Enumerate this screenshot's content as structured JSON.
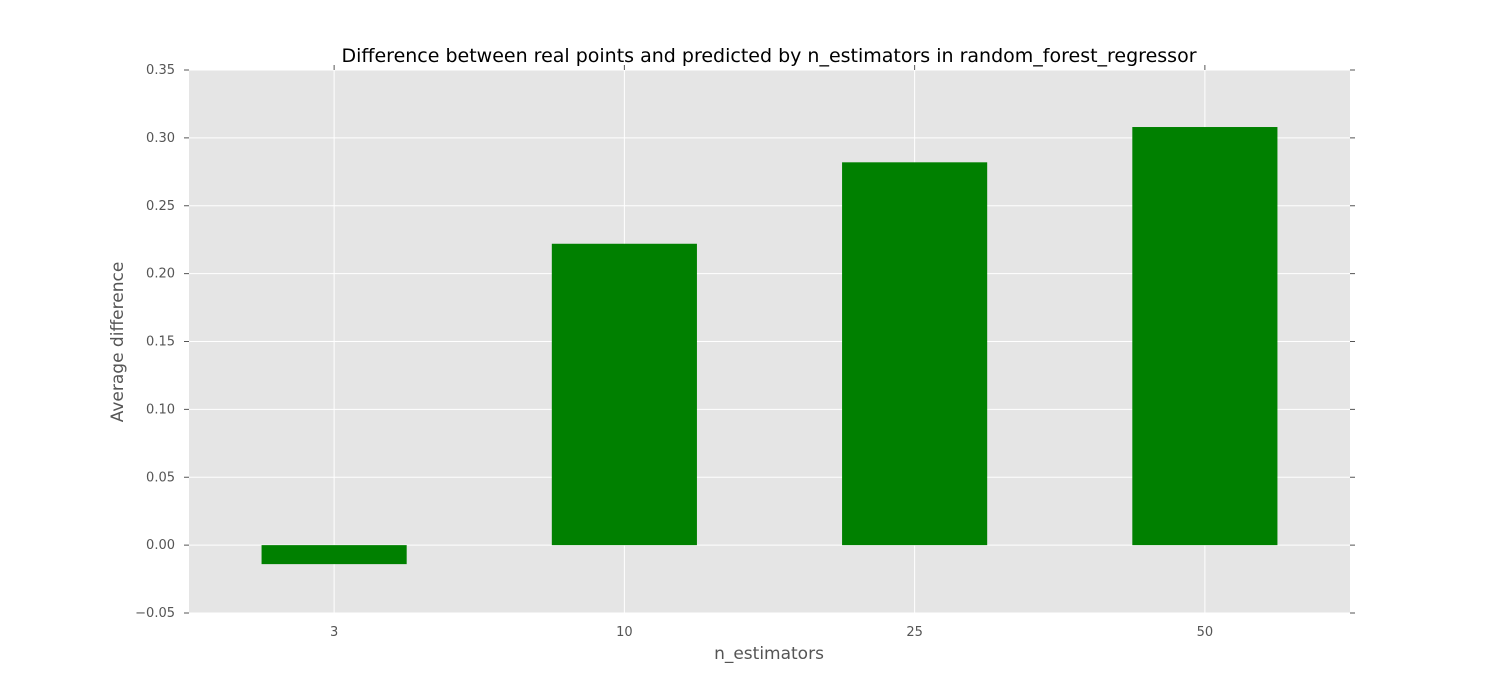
{
  "chart_data": {
    "type": "bar",
    "title": "Difference between real points and predicted by n_estimators in random_forest_regressor",
    "xlabel": "n_estimators",
    "ylabel": "Average difference",
    "categories": [
      "3",
      "10",
      "25",
      "50"
    ],
    "series": [
      {
        "values": [
          -0.014,
          0.222,
          0.282,
          0.308
        ],
        "color": "#008000"
      }
    ],
    "ylim": [
      -0.05,
      0.35
    ],
    "yticks": [
      "−0.05",
      "0.00",
      "0.05",
      "0.10",
      "0.15",
      "0.20",
      "0.25",
      "0.30",
      "0.35"
    ],
    "ytick_values": [
      -0.05,
      0.0,
      0.05,
      0.1,
      0.15,
      0.2,
      0.25,
      0.3,
      0.35
    ],
    "grid": true,
    "background_color": "#e5e5e5",
    "grid_color": "#ffffff"
  }
}
